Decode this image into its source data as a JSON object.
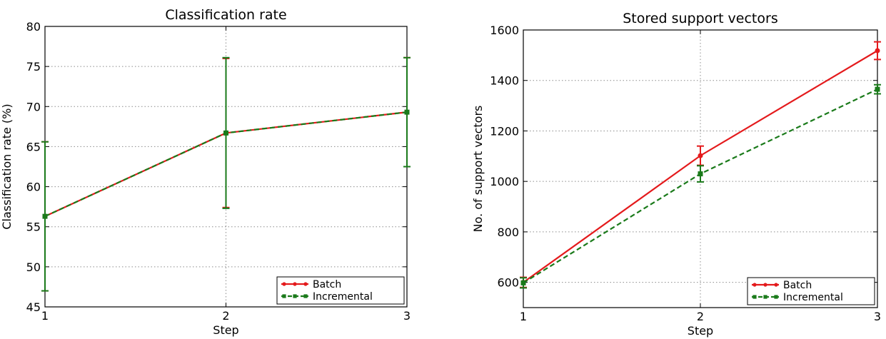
{
  "chart_data": [
    {
      "type": "line",
      "title": "Classification rate",
      "xlabel": "Step",
      "ylabel": "Classification rate (%)",
      "xlim": [
        1,
        3
      ],
      "ylim": [
        45,
        80
      ],
      "xticks": [
        "1",
        "2",
        "3"
      ],
      "yticks": [
        "45",
        "50",
        "55",
        "60",
        "65",
        "70",
        "75",
        "80"
      ],
      "grid": true,
      "legend_position": "bottom-right",
      "x": [
        1,
        2,
        3
      ],
      "series": [
        {
          "name": "Batch",
          "color": "#e41a1c",
          "linestyle": "solid",
          "marker": "circle",
          "values": [
            56.3,
            66.7,
            69.3
          ],
          "errors": [
            9.3,
            9.3,
            6.8
          ]
        },
        {
          "name": "Incremental",
          "color": "#1a7a1a",
          "linestyle": "dashed",
          "marker": "square",
          "values": [
            56.3,
            66.7,
            69.3
          ],
          "errors": [
            9.3,
            9.4,
            6.8
          ]
        }
      ]
    },
    {
      "type": "line",
      "title": "Stored support vectors",
      "xlabel": "Step",
      "ylabel": "No. of support vectors",
      "xlim": [
        1,
        3
      ],
      "ylim": [
        500,
        1600
      ],
      "xticks": [
        "1",
        "2",
        "3"
      ],
      "yticks": [
        "600",
        "800",
        "1000",
        "1200",
        "1400",
        "1600"
      ],
      "grid": true,
      "legend_position": "bottom-right",
      "x": [
        1,
        2,
        3
      ],
      "series": [
        {
          "name": "Batch",
          "color": "#e41a1c",
          "linestyle": "solid",
          "marker": "circle",
          "values": [
            600,
            1102,
            1518
          ],
          "errors": [
            20,
            38,
            35
          ]
        },
        {
          "name": "Incremental",
          "color": "#1a7a1a",
          "linestyle": "dashed",
          "marker": "square",
          "values": [
            598,
            1030,
            1365
          ],
          "errors": [
            20,
            32,
            18
          ]
        }
      ]
    }
  ]
}
